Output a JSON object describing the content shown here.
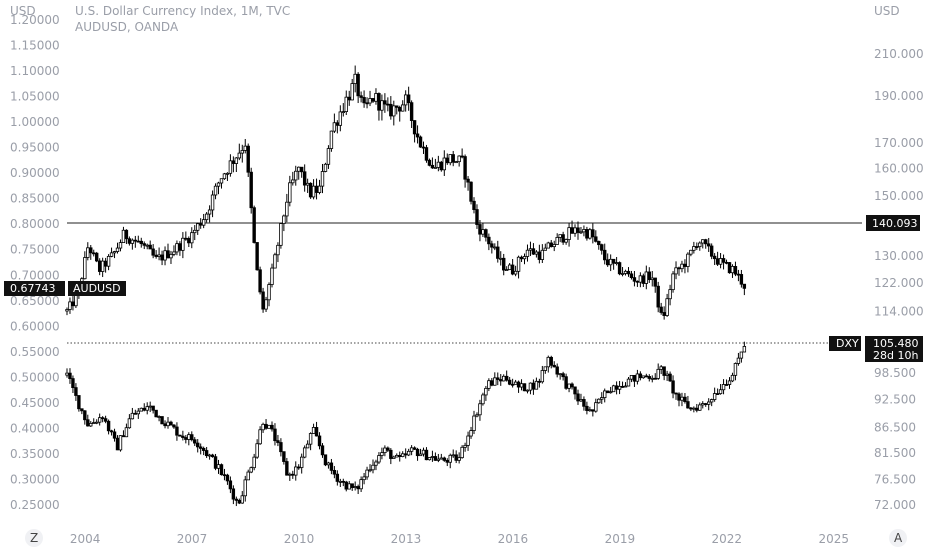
{
  "header": {
    "left_unit": "USD",
    "right_unit": "USD",
    "title": "U.S. Dollar Currency Index, 1M, TVC",
    "subtitle": "AUDUSD, OANDA",
    "corner_left": "Z",
    "corner_right": "A"
  },
  "chart_data": {
    "type": "candlestick",
    "x_axis": {
      "ticks": [
        "2004",
        "2007",
        "2010",
        "2013",
        "2016",
        "2019",
        "2022",
        "2025"
      ],
      "range": [
        2003.5,
        2025.8
      ]
    },
    "left_axis": {
      "unit": "USD",
      "range": [
        0.22,
        1.22
      ],
      "ticks": [
        "1.20000",
        "1.15000",
        "1.10000",
        "1.05000",
        "1.00000",
        "0.95000",
        "0.90000",
        "0.85000",
        "0.80000",
        "0.75000",
        "0.70000",
        "0.65000",
        "0.60000",
        "0.55000",
        "0.50000",
        "0.45000",
        "0.40000",
        "0.35000",
        "0.30000",
        "0.25000"
      ]
    },
    "right_axis": {
      "unit": "USD",
      "scale": "log",
      "ticks": [
        "210.000",
        "190.000",
        "170.000",
        "160.000",
        "150.000",
        "130.000",
        "122.000",
        "114.000",
        "98.500",
        "92.500",
        "86.500",
        "81.500",
        "76.500",
        "72.000"
      ]
    },
    "series": [
      {
        "name": "AUDUSD",
        "axis": "left",
        "points": [
          [
            2003.5,
            0.63
          ],
          [
            2003.8,
            0.66
          ],
          [
            2004.1,
            0.76
          ],
          [
            2004.4,
            0.71
          ],
          [
            2004.8,
            0.74
          ],
          [
            2005.1,
            0.78
          ],
          [
            2005.6,
            0.76
          ],
          [
            2006.0,
            0.73
          ],
          [
            2006.5,
            0.75
          ],
          [
            2007.0,
            0.78
          ],
          [
            2007.4,
            0.82
          ],
          [
            2007.8,
            0.89
          ],
          [
            2008.2,
            0.93
          ],
          [
            2008.5,
            0.96
          ],
          [
            2008.8,
            0.72
          ],
          [
            2009.0,
            0.63
          ],
          [
            2009.3,
            0.72
          ],
          [
            2009.7,
            0.86
          ],
          [
            2010.0,
            0.91
          ],
          [
            2010.3,
            0.86
          ],
          [
            2010.6,
            0.87
          ],
          [
            2010.9,
            0.98
          ],
          [
            2011.3,
            1.04
          ],
          [
            2011.6,
            1.08
          ],
          [
            2011.8,
            1.02
          ],
          [
            2012.1,
            1.05
          ],
          [
            2012.5,
            1.02
          ],
          [
            2013.0,
            1.04
          ],
          [
            2013.4,
            0.96
          ],
          [
            2013.8,
            0.91
          ],
          [
            2014.2,
            0.93
          ],
          [
            2014.6,
            0.92
          ],
          [
            2015.0,
            0.8
          ],
          [
            2015.3,
            0.77
          ],
          [
            2015.7,
            0.72
          ],
          [
            2016.0,
            0.71
          ],
          [
            2016.4,
            0.75
          ],
          [
            2016.8,
            0.74
          ],
          [
            2017.1,
            0.76
          ],
          [
            2017.5,
            0.78
          ],
          [
            2017.9,
            0.79
          ],
          [
            2018.2,
            0.78
          ],
          [
            2018.6,
            0.73
          ],
          [
            2019.0,
            0.71
          ],
          [
            2019.5,
            0.69
          ],
          [
            2019.9,
            0.7
          ],
          [
            2020.2,
            0.61
          ],
          [
            2020.5,
            0.7
          ],
          [
            2020.9,
            0.73
          ],
          [
            2021.2,
            0.77
          ],
          [
            2021.6,
            0.74
          ],
          [
            2021.9,
            0.72
          ],
          [
            2022.2,
            0.71
          ],
          [
            2022.5,
            0.68
          ]
        ]
      },
      {
        "name": "DXY",
        "axis": "right",
        "points": [
          [
            2003.5,
            98.0
          ],
          [
            2003.8,
            92.0
          ],
          [
            2004.1,
            87.0
          ],
          [
            2004.5,
            89.0
          ],
          [
            2004.9,
            82.5
          ],
          [
            2005.3,
            89.0
          ],
          [
            2005.8,
            91.0
          ],
          [
            2006.2,
            88.0
          ],
          [
            2006.7,
            85.0
          ],
          [
            2007.1,
            84.0
          ],
          [
            2007.6,
            80.0
          ],
          [
            2008.0,
            76.0
          ],
          [
            2008.3,
            72.0
          ],
          [
            2008.7,
            80.0
          ],
          [
            2009.0,
            88.0
          ],
          [
            2009.3,
            85.0
          ],
          [
            2009.7,
            77.0
          ],
          [
            2010.0,
            79.0
          ],
          [
            2010.4,
            86.0
          ],
          [
            2010.8,
            79.0
          ],
          [
            2011.2,
            76.0
          ],
          [
            2011.6,
            74.5
          ],
          [
            2012.0,
            79.0
          ],
          [
            2012.4,
            82.0
          ],
          [
            2012.8,
            80.0
          ],
          [
            2013.2,
            82.0
          ],
          [
            2013.6,
            81.0
          ],
          [
            2014.0,
            80.0
          ],
          [
            2014.5,
            80.5
          ],
          [
            2014.9,
            88.0
          ],
          [
            2015.3,
            96.0
          ],
          [
            2015.8,
            97.5
          ],
          [
            2016.2,
            95.0
          ],
          [
            2016.7,
            96.0
          ],
          [
            2017.0,
            102.0
          ],
          [
            2017.5,
            96.0
          ],
          [
            2017.9,
            92.0
          ],
          [
            2018.2,
            89.5
          ],
          [
            2018.7,
            95.0
          ],
          [
            2019.0,
            96.0
          ],
          [
            2019.5,
            97.5
          ],
          [
            2020.0,
            98.0
          ],
          [
            2020.2,
            99.5
          ],
          [
            2020.6,
            93.0
          ],
          [
            2021.0,
            90.5
          ],
          [
            2021.4,
            91.5
          ],
          [
            2021.8,
            95.0
          ],
          [
            2022.2,
            98.5
          ],
          [
            2022.5,
            105.5
          ]
        ]
      }
    ],
    "horizontal_lines": [
      {
        "label": "140.093",
        "style": "solid"
      },
      {
        "label": "DXY",
        "value": "105.480",
        "countdown": "28d 10h",
        "style": "dotted"
      }
    ],
    "price_tag": {
      "value": "0.67743",
      "label": "AUDUSD"
    },
    "grid": false
  }
}
